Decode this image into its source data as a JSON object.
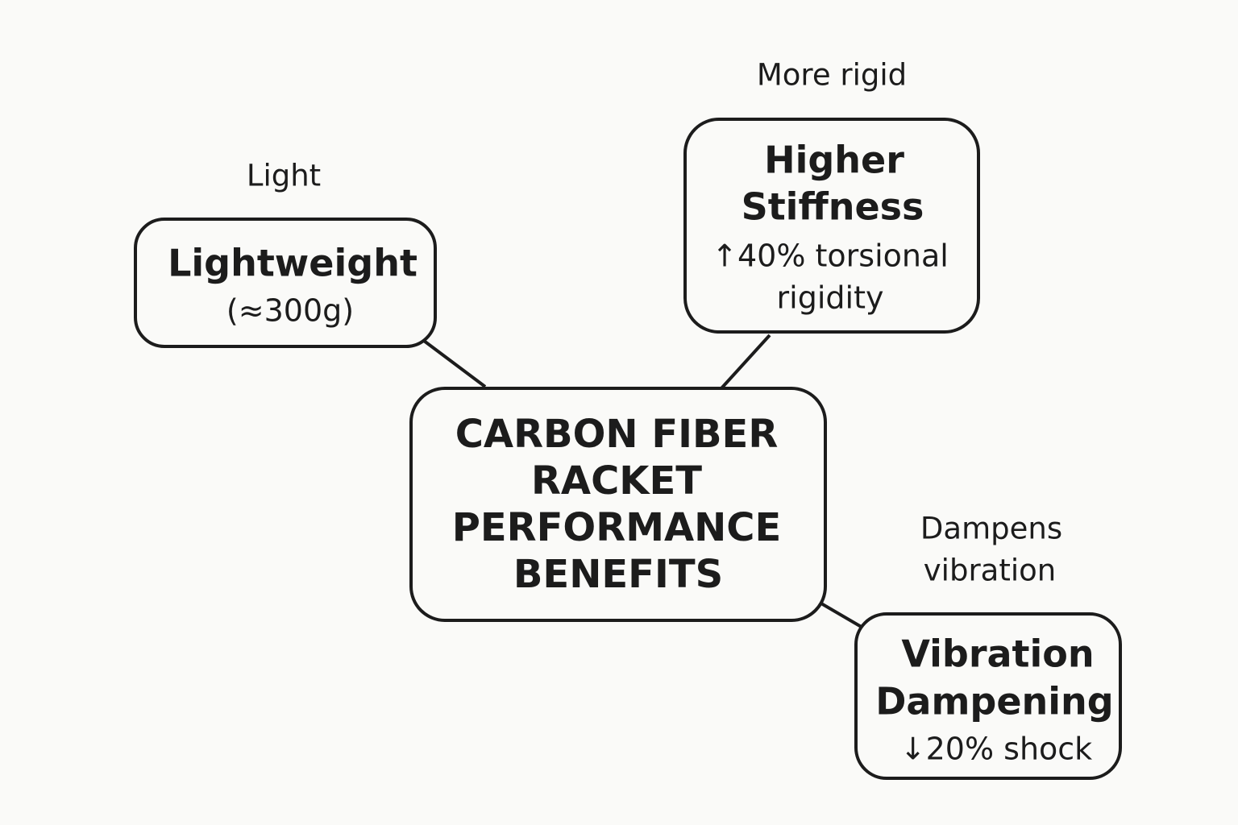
{
  "center": {
    "lines": [
      "CARBON FIBER",
      "RACKET",
      "PERFORMANCE",
      "BENEFITS"
    ]
  },
  "nodes": [
    {
      "annotation": [
        "Light"
      ],
      "title": [
        "Lightweight"
      ],
      "detail": [
        "(≈300g)"
      ]
    },
    {
      "annotation": [
        "More rigid"
      ],
      "title": [
        "Higher",
        "Stiffness"
      ],
      "detail": [
        "↑40% torsional",
        "rigidity"
      ]
    },
    {
      "annotation": [
        "Dampens",
        "vibration"
      ],
      "title": [
        "Vibration",
        "Dampening"
      ],
      "detail": [
        "↓20% shock"
      ]
    }
  ]
}
